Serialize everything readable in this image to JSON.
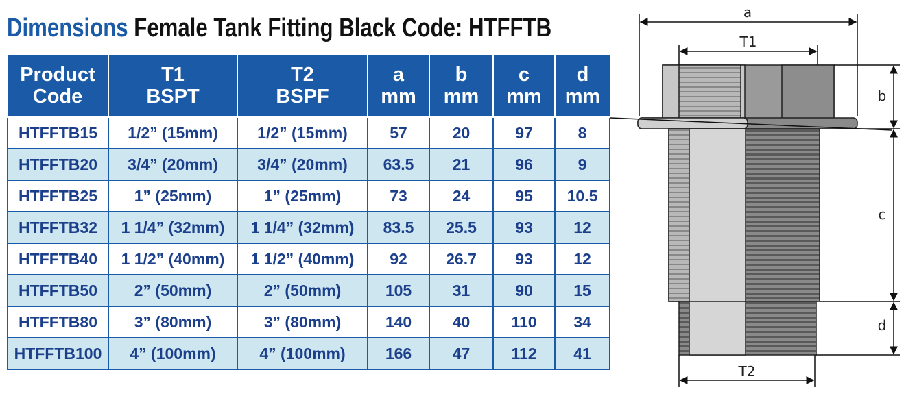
{
  "header": {
    "title_lead": "Dimensions",
    "title_rest": "Female Tank Fitting Black Code: HTFFTB"
  },
  "table": {
    "columns": [
      [
        "Product",
        "Code"
      ],
      [
        "T1",
        "BSPT"
      ],
      [
        "T2",
        "BSPF"
      ],
      [
        "a",
        "mm"
      ],
      [
        "b",
        "mm"
      ],
      [
        "c",
        "mm"
      ],
      [
        "d",
        "mm"
      ]
    ],
    "rows": [
      [
        "HTFFTB15",
        "1/2” (15mm)",
        "1/2” (15mm)",
        "57",
        "20",
        "97",
        "8"
      ],
      [
        "HTFFTB20",
        "3/4” (20mm)",
        "3/4” (20mm)",
        "63.5",
        "21",
        "96",
        "9"
      ],
      [
        "HTFFTB25",
        "1” (25mm)",
        "1” (25mm)",
        "73",
        "24",
        "95",
        "10.5"
      ],
      [
        "HTFFTB32",
        "1 1/4” (32mm)",
        "1 1/4” (32mm)",
        "83.5",
        "25.5",
        "93",
        "12"
      ],
      [
        "HTFFTB40",
        "1 1/2” (40mm)",
        "1 1/2” (40mm)",
        "92",
        "26.7",
        "93",
        "12"
      ],
      [
        "HTFFTB50",
        "2” (50mm)",
        "2” (50mm)",
        "105",
        "31",
        "90",
        "15"
      ],
      [
        "HTFFTB80",
        "3” (80mm)",
        "3” (80mm)",
        "140",
        "40",
        "110",
        "34"
      ],
      [
        "HTFFTB100",
        "4” (100mm)",
        "4” (100mm)",
        "166",
        "47",
        "112",
        "41"
      ]
    ]
  },
  "diagram": {
    "labels": {
      "a": "a",
      "t1": "T1",
      "b": "b",
      "c": "c",
      "d": "d",
      "t2": "T2"
    }
  }
}
